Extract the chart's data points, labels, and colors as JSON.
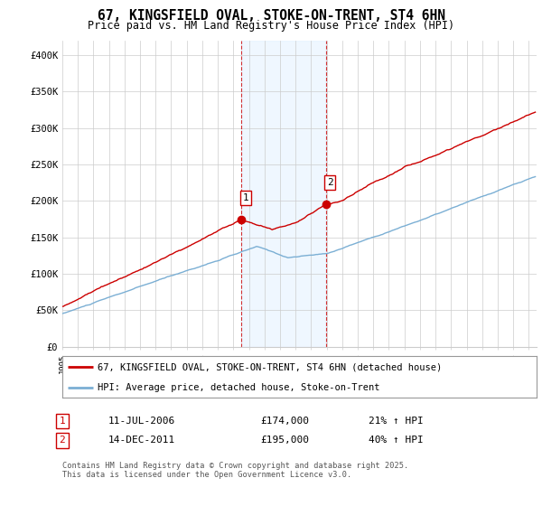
{
  "title": "67, KINGSFIELD OVAL, STOKE-ON-TRENT, ST4 6HN",
  "subtitle": "Price paid vs. HM Land Registry's House Price Index (HPI)",
  "ylabel_ticks": [
    "£0",
    "£50K",
    "£100K",
    "£150K",
    "£200K",
    "£250K",
    "£300K",
    "£350K",
    "£400K"
  ],
  "ytick_values": [
    0,
    50000,
    100000,
    150000,
    200000,
    250000,
    300000,
    350000,
    400000
  ],
  "ylim": [
    0,
    420000
  ],
  "xlim_start": 1995.0,
  "xlim_end": 2025.5,
  "purchase1_date": 2006.53,
  "purchase1_price": 174000,
  "purchase1_label": "1",
  "purchase1_text": "11-JUL-2006",
  "purchase1_price_text": "£174,000",
  "purchase1_hpi_text": "21% ↑ HPI",
  "purchase2_date": 2011.96,
  "purchase2_price": 195000,
  "purchase2_label": "2",
  "purchase2_text": "14-DEC-2011",
  "purchase2_price_text": "£195,000",
  "purchase2_hpi_text": "40% ↑ HPI",
  "hpi_line_color": "#7bafd4",
  "price_line_color": "#cc0000",
  "highlight_color": "#ddeeff",
  "highlight_alpha": 0.45,
  "legend_label_price": "67, KINGSFIELD OVAL, STOKE-ON-TRENT, ST4 6HN (detached house)",
  "legend_label_hpi": "HPI: Average price, detached house, Stoke-on-Trent",
  "footer_text": "Contains HM Land Registry data © Crown copyright and database right 2025.\nThis data is licensed under the Open Government Licence v3.0.",
  "background_color": "#ffffff"
}
